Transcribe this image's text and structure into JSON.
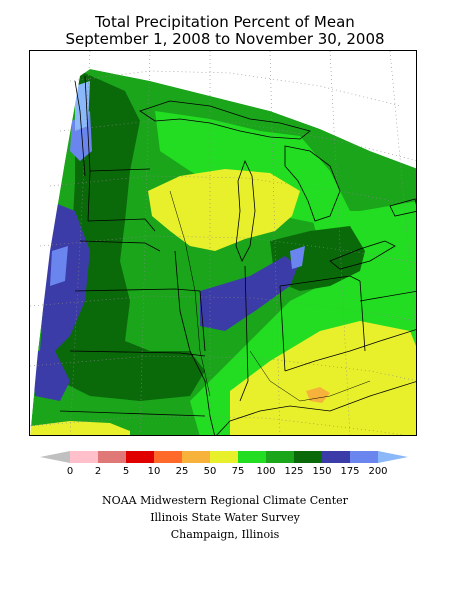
{
  "title": {
    "line1": "Total Precipitation Percent of Mean",
    "line2": "September 1, 2008 to November 30, 2008"
  },
  "legend": {
    "ticks": [
      "0",
      "2",
      "5",
      "10",
      "25",
      "50",
      "75",
      "100",
      "125",
      "150",
      "175",
      "200"
    ],
    "colors": {
      "below_min": "#c0c0c0",
      "0-2": "#ffc0cb",
      "2-5": "#e07878",
      "5-10": "#e00000",
      "10-25": "#ff6a2a",
      "25-50": "#f7b23c",
      "50-75": "#e8f02c",
      "75-100": "#22dd22",
      "100-125": "#1aa51a",
      "125-150": "#0a6a0a",
      "150-175": "#3c3ca8",
      "175-200": "#6a86ee",
      "above_max": "#8ab8f8"
    }
  },
  "credits": {
    "line1": "NOAA Midwestern Regional Climate Center",
    "line2": "Illinois State Water Survey",
    "line3": "Champaign, Illinois"
  }
}
